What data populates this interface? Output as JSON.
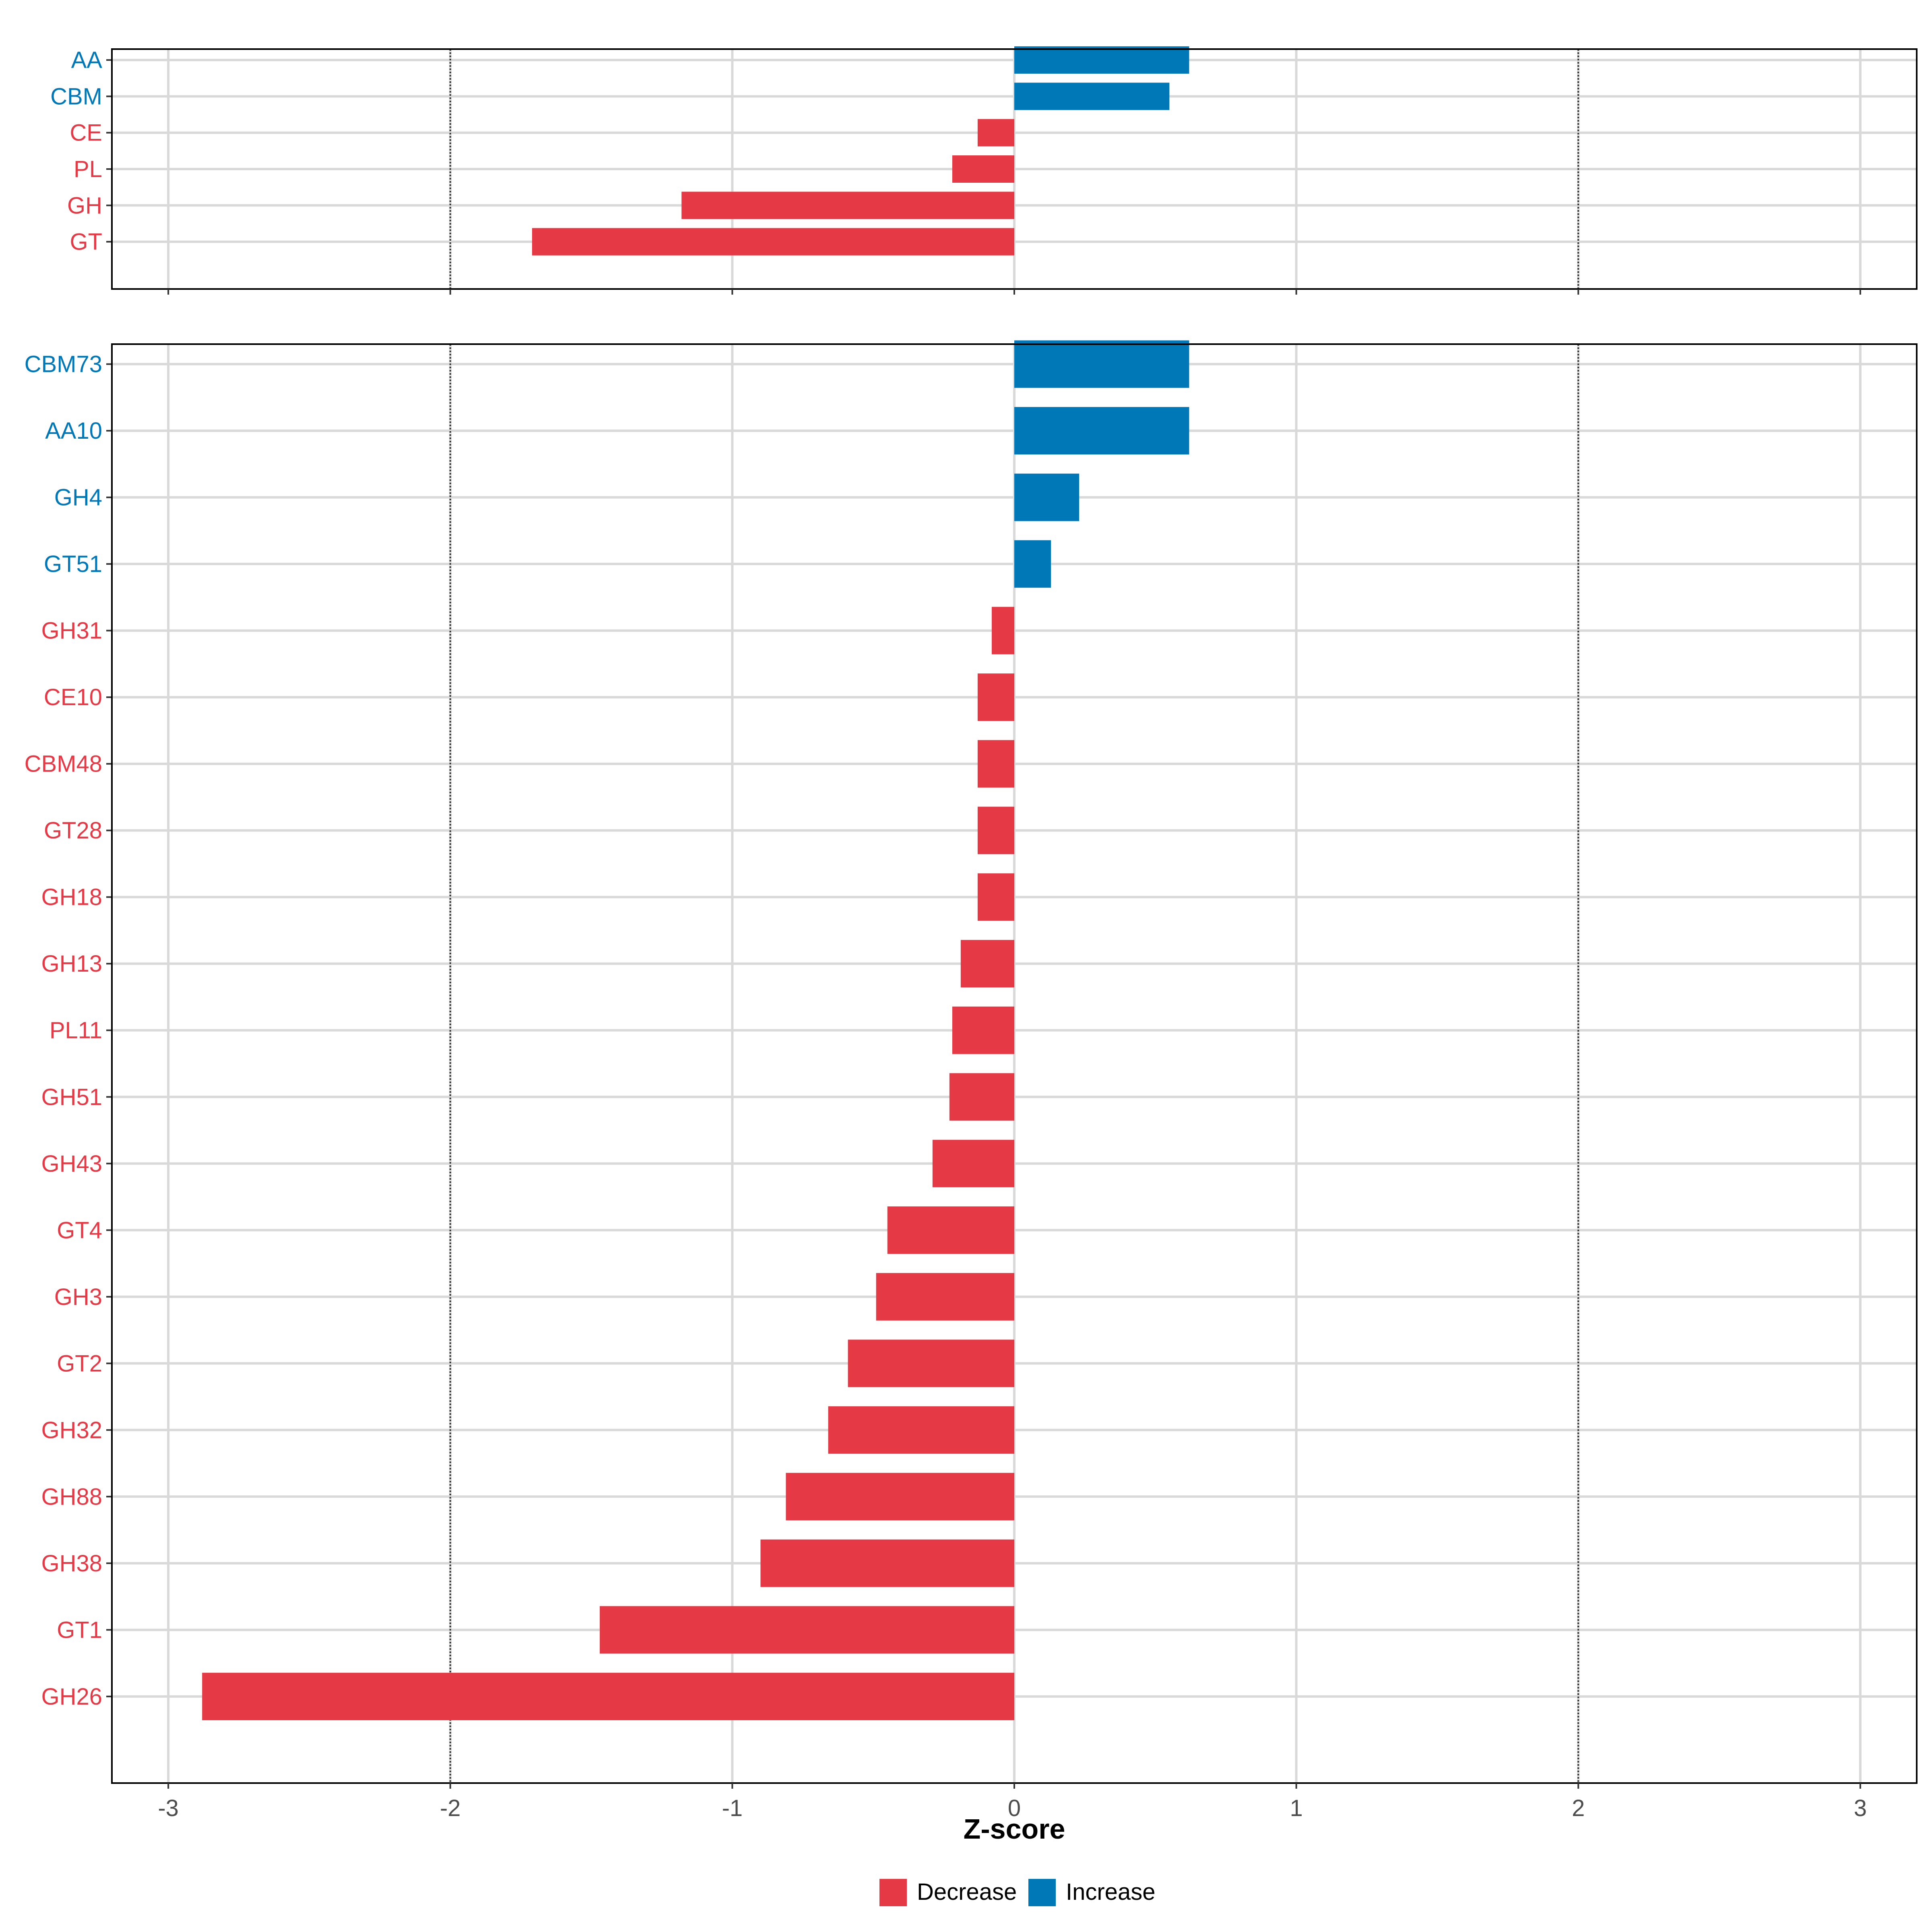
{
  "chart_data": [
    {
      "type": "bar",
      "orientation": "horizontal",
      "panel": "top",
      "categories": [
        "AA",
        "CBM",
        "CE",
        "PL",
        "GH",
        "GT"
      ],
      "values": [
        0.62,
        0.55,
        -0.13,
        -0.22,
        -1.18,
        -1.71
      ],
      "directions": [
        "Increase",
        "Increase",
        "Decrease",
        "Decrease",
        "Decrease",
        "Decrease"
      ],
      "xlim": [
        -3.2,
        3.2
      ],
      "reference_lines": [
        -2,
        2
      ]
    },
    {
      "type": "bar",
      "orientation": "horizontal",
      "panel": "bottom",
      "categories": [
        "CBM73",
        "AA10",
        "GH4",
        "GT51",
        "GH31",
        "CE10",
        "CBM48",
        "GT28",
        "GH18",
        "GH13",
        "PL11",
        "GH51",
        "GH43",
        "GT4",
        "GH3",
        "GT2",
        "GH32",
        "GH88",
        "GH38",
        "GT1",
        "GH26"
      ],
      "values": [
        0.62,
        0.62,
        0.23,
        0.13,
        -0.08,
        -0.13,
        -0.13,
        -0.13,
        -0.13,
        -0.19,
        -0.22,
        -0.23,
        -0.29,
        -0.45,
        -0.49,
        -0.59,
        -0.66,
        -0.81,
        -0.9,
        -1.47,
        -2.88
      ],
      "directions": [
        "Increase",
        "Increase",
        "Increase",
        "Increase",
        "Decrease",
        "Decrease",
        "Decrease",
        "Decrease",
        "Decrease",
        "Decrease",
        "Decrease",
        "Decrease",
        "Decrease",
        "Decrease",
        "Decrease",
        "Decrease",
        "Decrease",
        "Decrease",
        "Decrease",
        "Decrease",
        "Decrease"
      ],
      "xlim": [
        -3.2,
        3.2
      ],
      "xticks": [
        -3,
        -2,
        -1,
        0,
        1,
        2,
        3
      ],
      "xtick_labels": [
        "-3",
        "-2",
        "-1",
        "0",
        "1",
        "2",
        "3"
      ],
      "reference_lines": [
        -2,
        2
      ],
      "xlabel": "Z-score"
    }
  ],
  "legend": {
    "position": "bottom-center",
    "items": [
      {
        "label": "Decrease",
        "color": "#e63946"
      },
      {
        "label": "Increase",
        "color": "#0077b6"
      }
    ]
  },
  "colors": {
    "Decrease": "#e63946",
    "Increase": "#0077b6"
  }
}
